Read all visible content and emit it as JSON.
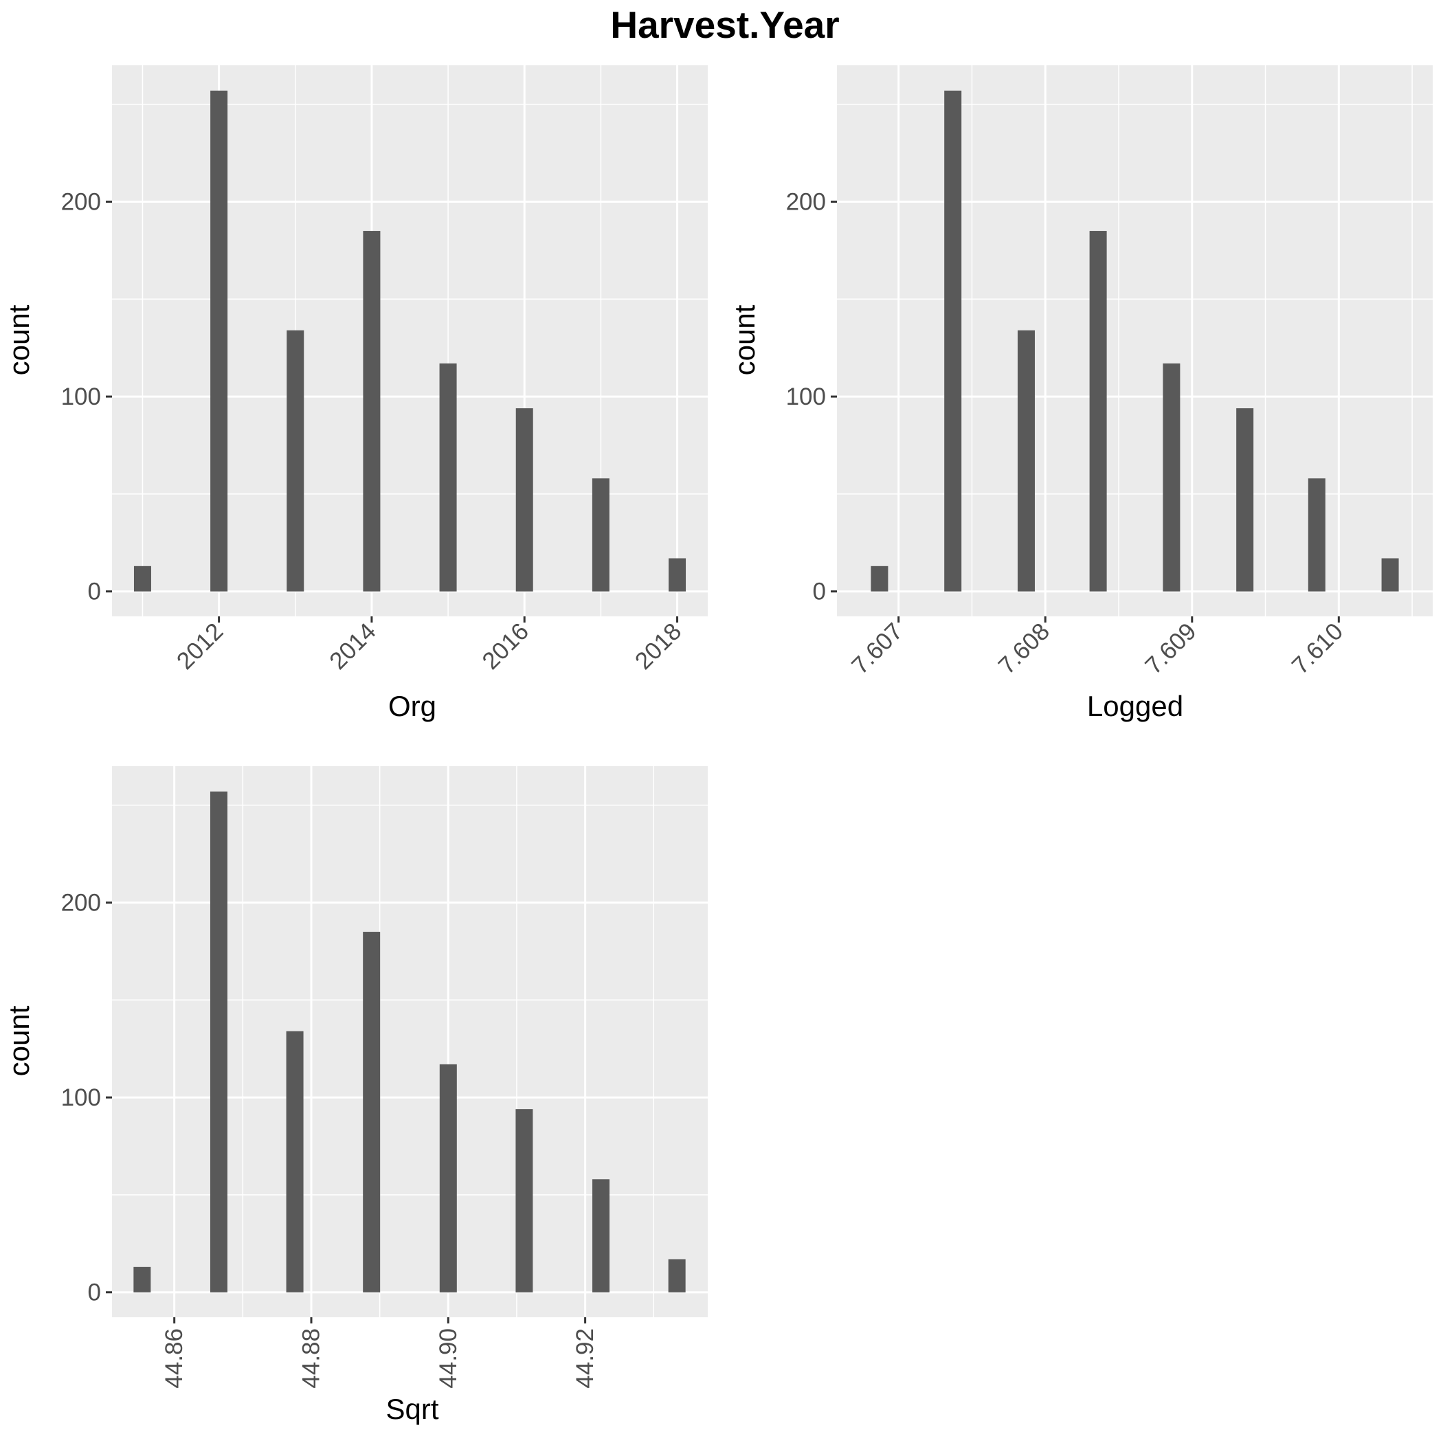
{
  "title": "Harvest.Year",
  "colors": {
    "panel_background": "#EBEBEB",
    "grid": "#FFFFFF",
    "bar": "#595959",
    "tick_text": "#4D4D4D",
    "tick_mark": "#333333",
    "text": "#000000"
  },
  "chart_data": [
    {
      "type": "bar",
      "xlabel": "Org",
      "ylabel": "count",
      "x": [
        2011,
        2012,
        2013,
        2014,
        2015,
        2016,
        2017,
        2018
      ],
      "values": [
        13,
        257,
        134,
        185,
        117,
        94,
        58,
        17
      ],
      "xlim": [
        2010.6,
        2018.4
      ],
      "ylim": [
        -12.8,
        270
      ],
      "xticks": [
        2012,
        2014,
        2016,
        2018
      ],
      "xtick_labels": [
        "2012",
        "2014",
        "2016",
        "2018"
      ],
      "yticks": [
        0,
        100,
        200
      ],
      "ytick_labels": [
        "0",
        "100",
        "200"
      ],
      "grid": true,
      "tick_angle": -45
    },
    {
      "type": "bar",
      "xlabel": "Logged",
      "ylabel": "count",
      "x": [
        7.60687,
        7.60737,
        7.60787,
        7.60836,
        7.60886,
        7.60936,
        7.60985,
        7.61035
      ],
      "values": [
        13,
        257,
        134,
        185,
        117,
        94,
        58,
        17
      ],
      "xlim": [
        7.60658,
        7.61064
      ],
      "ylim": [
        -12.8,
        270
      ],
      "xticks": [
        7.607,
        7.608,
        7.609,
        7.61
      ],
      "xtick_labels": [
        "7.607",
        "7.608",
        "7.609",
        "7.610"
      ],
      "yticks": [
        0,
        100,
        200
      ],
      "ytick_labels": [
        "0",
        "100",
        "200"
      ],
      "grid": true,
      "tick_angle": -45
    },
    {
      "type": "bar",
      "xlabel": "Sqrt",
      "ylabel": "count",
      "x": [
        44.8553,
        44.8665,
        44.8776,
        44.8888,
        44.9,
        44.9111,
        44.9223,
        44.9334
      ],
      "values": [
        13,
        257,
        134,
        185,
        117,
        94,
        58,
        17
      ],
      "xlim": [
        44.8509,
        44.9379
      ],
      "ylim": [
        -12.8,
        270
      ],
      "xticks": [
        44.86,
        44.88,
        44.9,
        44.92
      ],
      "xtick_labels": [
        "44.86",
        "44.88",
        "44.90",
        "44.92"
      ],
      "yticks": [
        0,
        100,
        200
      ],
      "ytick_labels": [
        "0",
        "100",
        "200"
      ],
      "grid": true,
      "tick_angle": -90
    }
  ]
}
